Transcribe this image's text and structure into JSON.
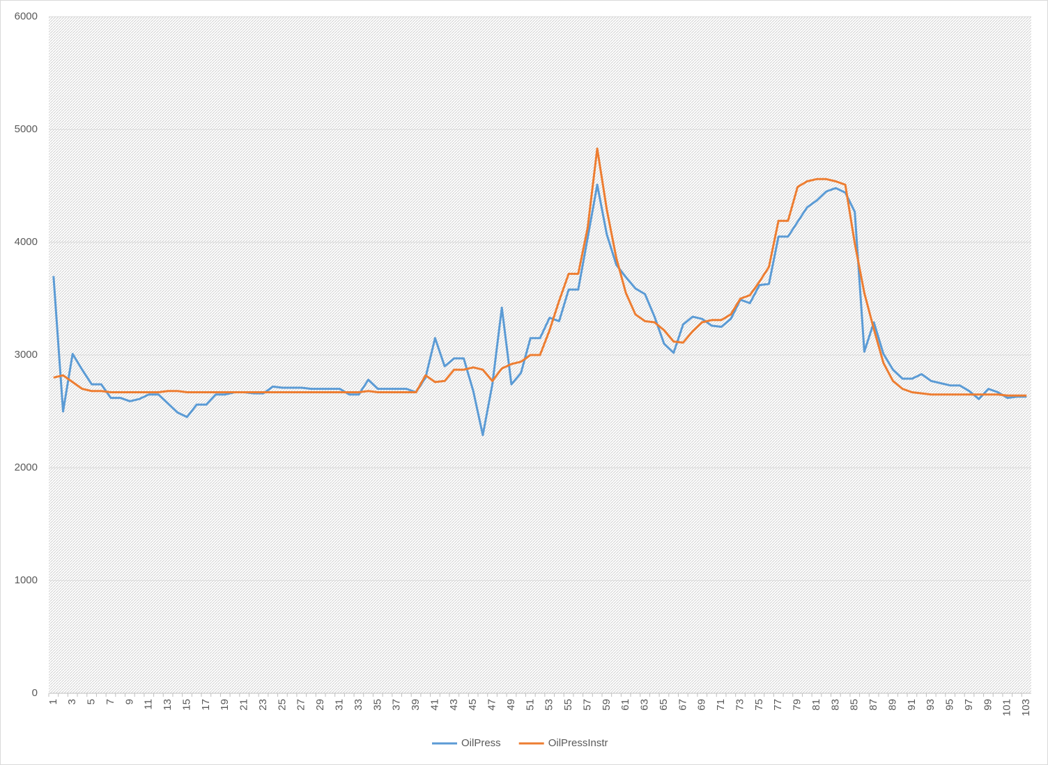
{
  "chart_data": {
    "type": "line",
    "categories": [
      1,
      null,
      3,
      null,
      5,
      null,
      7,
      null,
      9,
      null,
      11,
      null,
      13,
      null,
      15,
      null,
      17,
      null,
      19,
      null,
      21,
      null,
      23,
      null,
      25,
      null,
      27,
      null,
      29,
      null,
      31,
      null,
      33,
      null,
      35,
      null,
      37,
      null,
      39,
      null,
      41,
      null,
      43,
      null,
      45,
      null,
      47,
      null,
      49,
      null,
      51,
      null,
      53,
      null,
      55,
      null,
      57,
      null,
      59,
      null,
      61,
      null,
      63,
      null,
      65,
      null,
      67,
      null,
      69,
      null,
      71,
      null,
      73,
      null,
      75,
      null,
      77,
      null,
      79,
      null,
      81,
      null,
      83,
      null,
      85,
      null,
      87,
      null,
      89,
      null,
      91,
      null,
      93,
      null,
      95,
      null,
      97,
      null,
      99,
      null,
      101,
      null,
      103
    ],
    "series": [
      {
        "name": "OilPress",
        "color": "#5b9bd5",
        "values": [
          3700,
          2500,
          3010,
          2870,
          2740,
          2740,
          2620,
          2620,
          2590,
          2610,
          2650,
          2650,
          2570,
          2490,
          2450,
          2560,
          2560,
          2650,
          2650,
          2670,
          2670,
          2660,
          2660,
          2720,
          2710,
          2710,
          2710,
          2700,
          2700,
          2700,
          2700,
          2650,
          2650,
          2780,
          2700,
          2700,
          2700,
          2700,
          2670,
          2800,
          3150,
          2900,
          2970,
          2970,
          2680,
          2290,
          2740,
          3420,
          2740,
          2840,
          3150,
          3150,
          3330,
          3300,
          3580,
          3580,
          4040,
          4510,
          4070,
          3800,
          3690,
          3590,
          3540,
          3340,
          3100,
          3020,
          3270,
          3340,
          3320,
          3260,
          3250,
          3320,
          3490,
          3460,
          3620,
          3630,
          4050,
          4050,
          4180,
          4310,
          4370,
          4450,
          4480,
          4440,
          4270,
          3030,
          3290,
          3010,
          2870,
          2790,
          2790,
          2830,
          2770,
          2750,
          2730,
          2730,
          2680,
          2610,
          2700,
          2670,
          2620,
          2630,
          2630
        ]
      },
      {
        "name": "OilPressInstr",
        "color": "#ed7d31",
        "values": [
          2800,
          2820,
          2760,
          2700,
          2680,
          2680,
          2670,
          2670,
          2670,
          2670,
          2670,
          2670,
          2680,
          2680,
          2670,
          2670,
          2670,
          2670,
          2670,
          2670,
          2670,
          2670,
          2670,
          2670,
          2670,
          2670,
          2670,
          2670,
          2670,
          2670,
          2670,
          2670,
          2670,
          2680,
          2670,
          2670,
          2670,
          2670,
          2670,
          2820,
          2760,
          2770,
          2870,
          2870,
          2890,
          2870,
          2770,
          2880,
          2920,
          2940,
          3000,
          3000,
          3220,
          3480,
          3720,
          3720,
          4130,
          4830,
          4290,
          3860,
          3550,
          3360,
          3300,
          3290,
          3220,
          3120,
          3110,
          3210,
          3290,
          3310,
          3310,
          3360,
          3500,
          3530,
          3650,
          3780,
          4190,
          4190,
          4490,
          4540,
          4560,
          4560,
          4540,
          4510,
          3990,
          3550,
          3230,
          2930,
          2770,
          2700,
          2670,
          2660,
          2650,
          2650,
          2650,
          2650,
          2650,
          2650,
          2650,
          2650,
          2640,
          2640,
          2640
        ]
      }
    ],
    "ylim": [
      0,
      6000
    ],
    "yticks": [
      0,
      1000,
      2000,
      3000,
      4000,
      5000,
      6000
    ],
    "grid": true,
    "legend": "bottom"
  }
}
